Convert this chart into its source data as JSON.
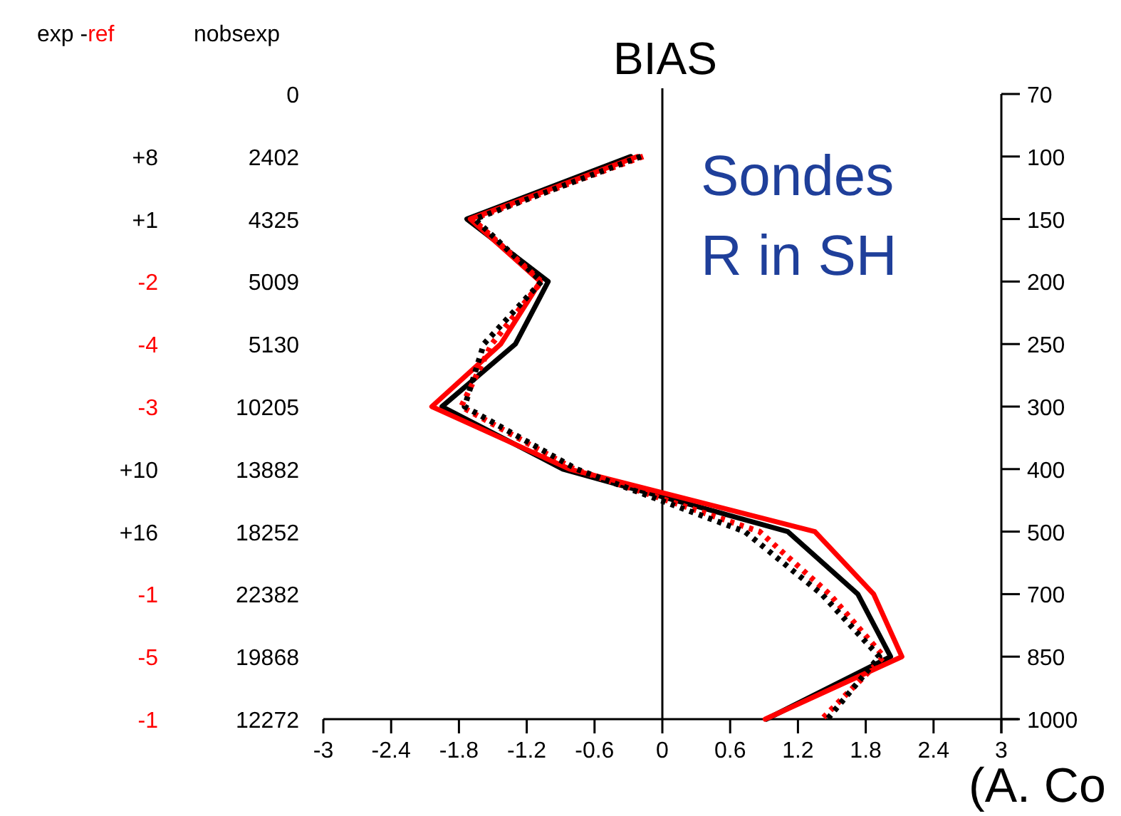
{
  "chart_data": {
    "type": "line",
    "orientation": "horizontal",
    "title": "BIAS",
    "categories": [
      "70",
      "100",
      "150",
      "200",
      "250",
      "300",
      "400",
      "500",
      "700",
      "850",
      "1000"
    ],
    "series": [
      {
        "color": "#000000",
        "line_style": "solid",
        "values": [
          null,
          -0.28,
          -1.73,
          -1.01,
          -1.3,
          -1.95,
          -0.88,
          1.11,
          1.73,
          2.02,
          0.92
        ]
      },
      {
        "color": "#ff0000",
        "line_style": "solid",
        "values": [
          null,
          -0.22,
          -1.7,
          -1.08,
          -1.43,
          -2.04,
          -0.82,
          1.35,
          1.87,
          2.12,
          0.91
        ]
      },
      {
        "color": "#ff0000",
        "line_style": "dotted",
        "values": [
          null,
          -0.17,
          -1.68,
          -1.07,
          -1.51,
          -1.78,
          -0.78,
          0.86,
          1.48,
          1.96,
          1.41
        ]
      },
      {
        "color": "#000000",
        "line_style": "dotted",
        "values": [
          null,
          -0.19,
          -1.66,
          -1.07,
          -1.58,
          -1.75,
          -0.76,
          0.73,
          1.41,
          1.92,
          1.46
        ]
      }
    ],
    "xlim": [
      -3,
      3
    ],
    "xticks": [
      -3,
      -2.4,
      -1.8,
      -1.2,
      -0.6,
      0,
      0.6,
      1.2,
      1.8,
      2.4,
      3
    ],
    "ref_lines": [
      {
        "axis": "x",
        "value": 0,
        "color": "#000000"
      }
    ],
    "annotations": [
      "Sondes\nR in SH",
      "(A. Co",
      "exp -ref",
      "nobsexp",
      "+8",
      "+1",
      "-2",
      "-4",
      "-3",
      "+10",
      "+16",
      "-1",
      "-5",
      "-1",
      "0",
      "2402",
      "4325",
      "5009",
      "5130",
      "10205",
      "13882",
      "18252",
      "22382",
      "19868",
      "12272"
    ],
    "grid": false,
    "marker": "none"
  }
}
